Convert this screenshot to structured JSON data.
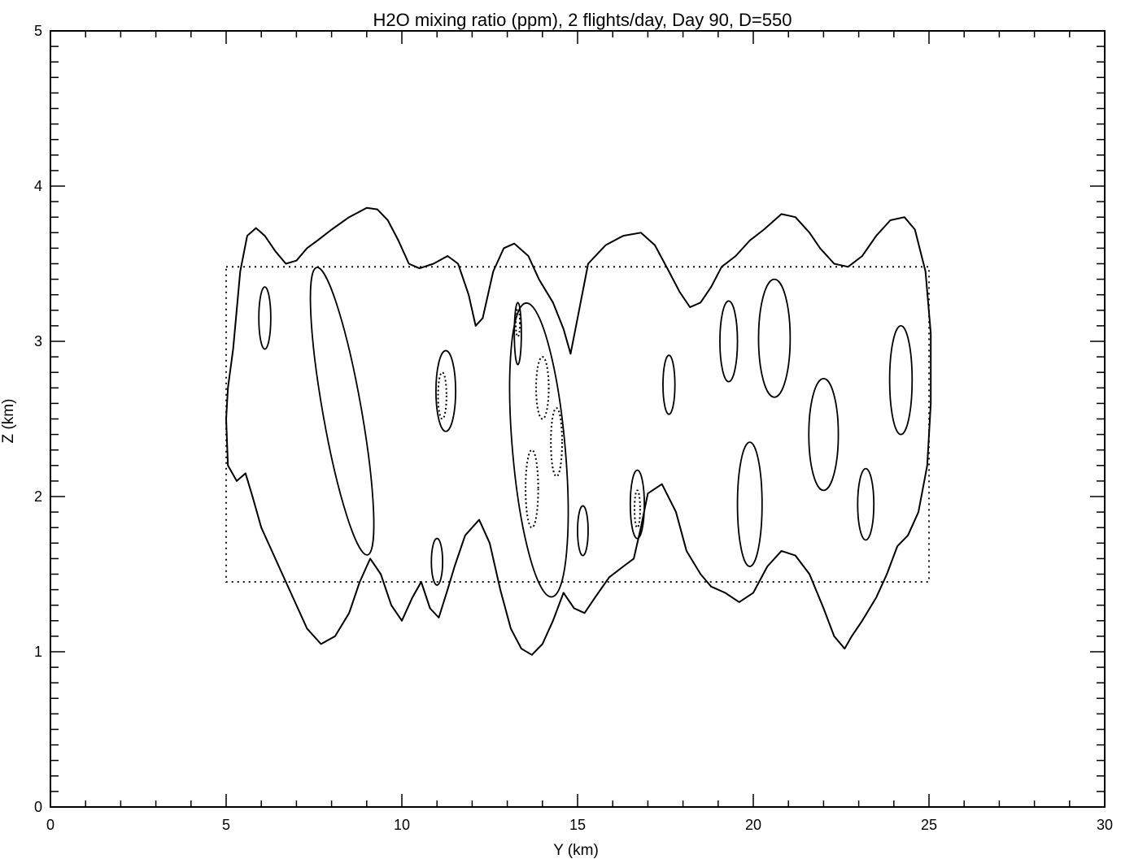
{
  "chart_data": {
    "type": "contour",
    "title": "H2O mixing ratio (ppm), 2 flights/day, Day 90, D=550",
    "xlabel": "Y (km)",
    "ylabel": "Z (km)",
    "xlim": [
      0,
      30
    ],
    "ylim": [
      0,
      5
    ],
    "xticks": [
      "0",
      "5",
      "10",
      "15",
      "20",
      "25",
      "30"
    ],
    "yticks": [
      "0",
      "1",
      "2",
      "3",
      "4",
      "5"
    ],
    "grid": false,
    "flight_box": {
      "y_range": [
        5,
        25
      ],
      "z_range": [
        1.45,
        3.48
      ],
      "style": "dotted"
    },
    "outer_contour": {
      "style": "solid",
      "points": [
        [
          5.0,
          2.5
        ],
        [
          5.05,
          2.7
        ],
        [
          5.2,
          2.95
        ],
        [
          5.4,
          3.45
        ],
        [
          5.6,
          3.68
        ],
        [
          5.85,
          3.73
        ],
        [
          6.1,
          3.68
        ],
        [
          6.4,
          3.58
        ],
        [
          6.7,
          3.5
        ],
        [
          7.0,
          3.52
        ],
        [
          7.3,
          3.6
        ],
        [
          7.6,
          3.65
        ],
        [
          8.0,
          3.72
        ],
        [
          8.5,
          3.8
        ],
        [
          9.0,
          3.86
        ],
        [
          9.3,
          3.85
        ],
        [
          9.6,
          3.78
        ],
        [
          9.9,
          3.65
        ],
        [
          10.2,
          3.5
        ],
        [
          10.5,
          3.47
        ],
        [
          10.9,
          3.5
        ],
        [
          11.3,
          3.55
        ],
        [
          11.6,
          3.5
        ],
        [
          11.9,
          3.3
        ],
        [
          12.1,
          3.1
        ],
        [
          12.3,
          3.15
        ],
        [
          12.6,
          3.45
        ],
        [
          12.9,
          3.6
        ],
        [
          13.2,
          3.63
        ],
        [
          13.6,
          3.55
        ],
        [
          13.9,
          3.4
        ],
        [
          14.3,
          3.25
        ],
        [
          14.6,
          3.08
        ],
        [
          14.8,
          2.92
        ],
        [
          15.0,
          3.15
        ],
        [
          15.3,
          3.5
        ],
        [
          15.8,
          3.62
        ],
        [
          16.3,
          3.68
        ],
        [
          16.8,
          3.7
        ],
        [
          17.2,
          3.62
        ],
        [
          17.6,
          3.45
        ],
        [
          17.9,
          3.32
        ],
        [
          18.2,
          3.22
        ],
        [
          18.5,
          3.25
        ],
        [
          18.8,
          3.35
        ],
        [
          19.1,
          3.48
        ],
        [
          19.5,
          3.55
        ],
        [
          19.9,
          3.65
        ],
        [
          20.3,
          3.72
        ],
        [
          20.8,
          3.82
        ],
        [
          21.2,
          3.8
        ],
        [
          21.6,
          3.7
        ],
        [
          21.9,
          3.6
        ],
        [
          22.3,
          3.5
        ],
        [
          22.7,
          3.48
        ],
        [
          23.1,
          3.55
        ],
        [
          23.5,
          3.68
        ],
        [
          23.9,
          3.78
        ],
        [
          24.3,
          3.8
        ],
        [
          24.6,
          3.72
        ],
        [
          24.9,
          3.45
        ],
        [
          25.05,
          3.05
        ],
        [
          25.05,
          2.6
        ],
        [
          24.95,
          2.2
        ],
        [
          24.7,
          1.9
        ],
        [
          24.4,
          1.75
        ],
        [
          24.1,
          1.68
        ],
        [
          23.8,
          1.5
        ],
        [
          23.5,
          1.35
        ],
        [
          23.1,
          1.2
        ],
        [
          22.8,
          1.1
        ],
        [
          22.6,
          1.02
        ],
        [
          22.3,
          1.1
        ],
        [
          22.0,
          1.28
        ],
        [
          21.6,
          1.5
        ],
        [
          21.2,
          1.62
        ],
        [
          20.8,
          1.65
        ],
        [
          20.4,
          1.55
        ],
        [
          20.0,
          1.38
        ],
        [
          19.6,
          1.32
        ],
        [
          19.2,
          1.38
        ],
        [
          18.8,
          1.42
        ],
        [
          18.5,
          1.5
        ],
        [
          18.1,
          1.65
        ],
        [
          17.8,
          1.9
        ],
        [
          17.4,
          2.08
        ],
        [
          17.0,
          2.02
        ],
        [
          16.8,
          1.8
        ],
        [
          16.6,
          1.6
        ],
        [
          16.3,
          1.55
        ],
        [
          15.9,
          1.48
        ],
        [
          15.5,
          1.35
        ],
        [
          15.2,
          1.25
        ],
        [
          14.9,
          1.28
        ],
        [
          14.6,
          1.38
        ],
        [
          14.3,
          1.2
        ],
        [
          14.0,
          1.05
        ],
        [
          13.7,
          0.98
        ],
        [
          13.4,
          1.02
        ],
        [
          13.1,
          1.15
        ],
        [
          12.8,
          1.4
        ],
        [
          12.5,
          1.7
        ],
        [
          12.2,
          1.85
        ],
        [
          11.8,
          1.75
        ],
        [
          11.5,
          1.55
        ],
        [
          11.3,
          1.4
        ],
        [
          11.05,
          1.22
        ],
        [
          10.8,
          1.28
        ],
        [
          10.55,
          1.45
        ],
        [
          10.3,
          1.35
        ],
        [
          10.0,
          1.2
        ],
        [
          9.7,
          1.3
        ],
        [
          9.4,
          1.5
        ],
        [
          9.1,
          1.6
        ],
        [
          8.8,
          1.45
        ],
        [
          8.5,
          1.25
        ],
        [
          8.1,
          1.1
        ],
        [
          7.7,
          1.05
        ],
        [
          7.3,
          1.15
        ],
        [
          6.9,
          1.35
        ],
        [
          6.6,
          1.5
        ],
        [
          6.3,
          1.65
        ],
        [
          6.0,
          1.8
        ],
        [
          5.75,
          2.0
        ],
        [
          5.55,
          2.15
        ],
        [
          5.3,
          2.1
        ],
        [
          5.05,
          2.2
        ]
      ]
    },
    "inner_contours": [
      {
        "style": "solid",
        "center": [
          6.1,
          3.15
        ],
        "radius": [
          0.17,
          0.2
        ]
      },
      {
        "style": "solid",
        "center": [
          8.3,
          2.55
        ],
        "radius": [
          0.55,
          0.94
        ],
        "tilt_deg": -10
      },
      {
        "style": "solid",
        "center": [
          11.25,
          2.68
        ],
        "radius": [
          0.28,
          0.26
        ]
      },
      {
        "style": "dotted",
        "center": [
          11.15,
          2.65
        ],
        "radius": [
          0.12,
          0.15
        ]
      },
      {
        "style": "solid",
        "center": [
          13.3,
          3.05
        ],
        "radius": [
          0.1,
          0.2
        ]
      },
      {
        "style": "dotted",
        "center": [
          13.3,
          3.12
        ],
        "radius": [
          0.06,
          0.09
        ]
      },
      {
        "style": "solid",
        "center": [
          13.9,
          2.3
        ],
        "radius": [
          0.75,
          0.95
        ],
        "tilt_deg": -5
      },
      {
        "style": "dotted",
        "center": [
          14.0,
          2.7
        ],
        "radius": [
          0.18,
          0.2
        ]
      },
      {
        "style": "dotted",
        "center": [
          14.4,
          2.35
        ],
        "radius": [
          0.16,
          0.22
        ]
      },
      {
        "style": "dotted",
        "center": [
          13.7,
          2.05
        ],
        "radius": [
          0.18,
          0.25
        ]
      },
      {
        "style": "solid",
        "center": [
          11.0,
          1.58
        ],
        "radius": [
          0.16,
          0.15
        ]
      },
      {
        "style": "solid",
        "center": [
          15.15,
          1.78
        ],
        "radius": [
          0.15,
          0.16
        ]
      },
      {
        "style": "solid",
        "center": [
          16.7,
          1.95
        ],
        "radius": [
          0.2,
          0.22
        ]
      },
      {
        "style": "dotted",
        "center": [
          16.7,
          1.92
        ],
        "radius": [
          0.08,
          0.12
        ]
      },
      {
        "style": "solid",
        "center": [
          17.6,
          2.72
        ],
        "radius": [
          0.17,
          0.19
        ]
      },
      {
        "style": "solid",
        "center": [
          19.3,
          3.0
        ],
        "radius": [
          0.25,
          0.26
        ]
      },
      {
        "style": "solid",
        "center": [
          20.6,
          3.02
        ],
        "radius": [
          0.45,
          0.38
        ]
      },
      {
        "style": "solid",
        "center": [
          19.9,
          1.95
        ],
        "radius": [
          0.35,
          0.4
        ]
      },
      {
        "style": "solid",
        "center": [
          22.0,
          2.4
        ],
        "radius": [
          0.42,
          0.36
        ]
      },
      {
        "style": "solid",
        "center": [
          23.2,
          1.95
        ],
        "radius": [
          0.23,
          0.23
        ]
      },
      {
        "style": "solid",
        "center": [
          24.2,
          2.75
        ],
        "radius": [
          0.32,
          0.35
        ]
      }
    ]
  }
}
